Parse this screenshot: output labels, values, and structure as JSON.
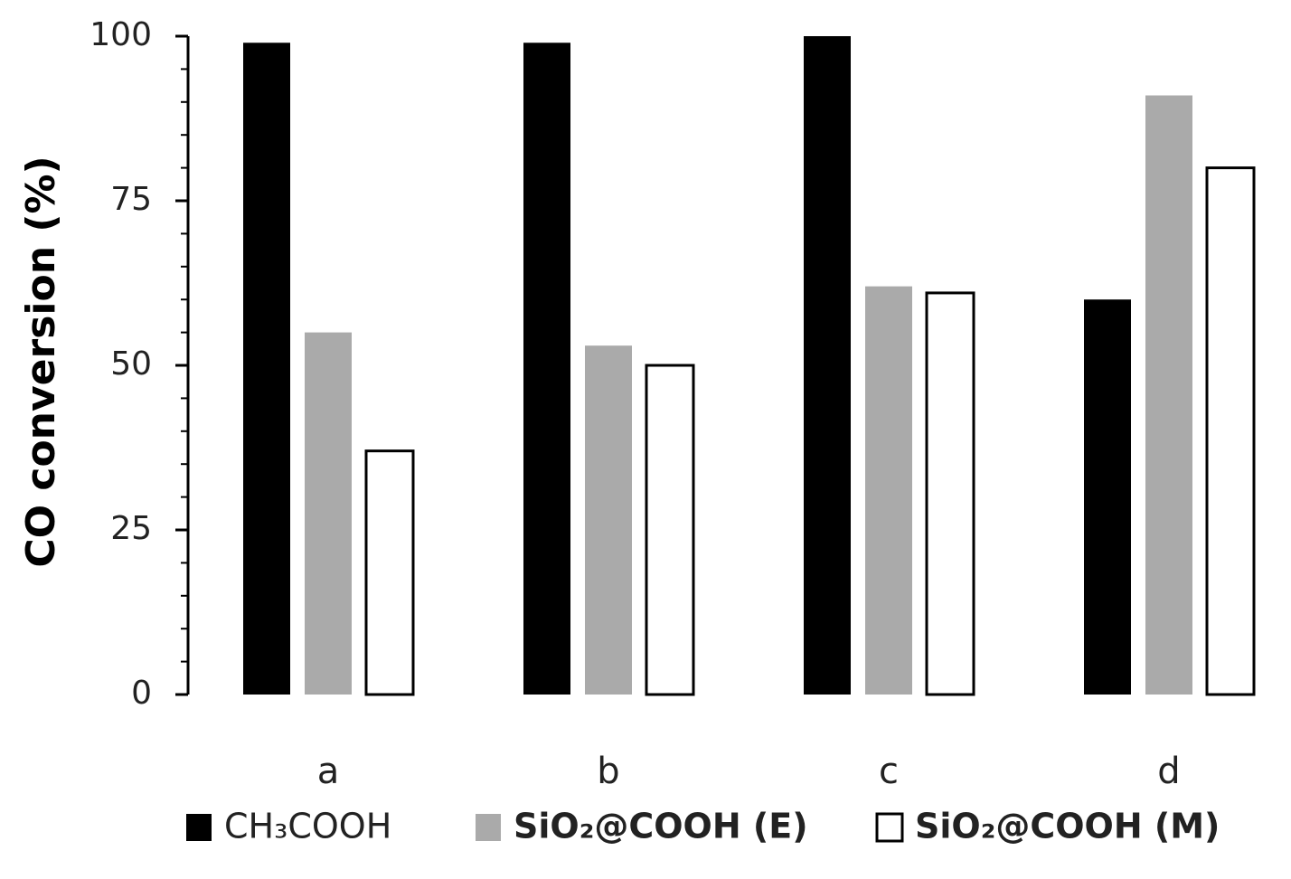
{
  "chart_data": {
    "type": "bar",
    "y_label": "CO conversion (%)",
    "categories": [
      "a",
      "b",
      "c",
      "d"
    ],
    "series": [
      {
        "name": "CH₃COOH",
        "color": "#000000",
        "values": [
          99,
          99,
          100,
          60
        ]
      },
      {
        "name": "SiO₂@COOH (E)",
        "color": "#aaaaaa",
        "values": [
          55,
          53,
          62,
          91
        ]
      },
      {
        "name": "SiO₂@COOH (M)",
        "color": "#ffffff",
        "values": [
          37,
          50,
          61,
          80
        ]
      }
    ],
    "ylim": [
      0,
      100
    ],
    "yticks": [
      0,
      25,
      50,
      75,
      100
    ],
    "yticks_minor": [
      5,
      10,
      15,
      20,
      30,
      35,
      40,
      45,
      55,
      60,
      65,
      70,
      80,
      85,
      90,
      95
    ],
    "grid": false,
    "legend": "bottom"
  }
}
